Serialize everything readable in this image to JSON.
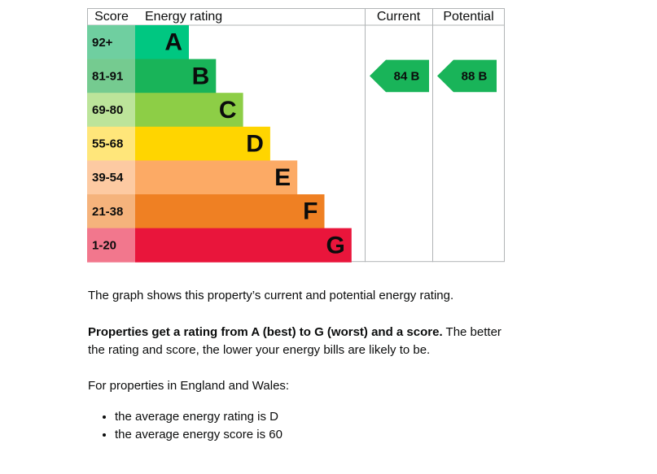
{
  "header": [
    "Score",
    "Energy rating",
    "Current",
    "Potential"
  ],
  "bands": [
    {
      "score": "92+",
      "rating": "A",
      "color": "#00c781",
      "score_color": "#6fcfa0"
    },
    {
      "score": "81-91",
      "rating": "B",
      "color": "#19b459",
      "score_color": "#75cb90"
    },
    {
      "score": "69-80",
      "rating": "C",
      "color": "#8dce46",
      "score_color": "#bce49a"
    },
    {
      "score": "55-68",
      "rating": "D",
      "color": "#ffd500",
      "score_color": "#ffe67a"
    },
    {
      "score": "39-54",
      "rating": "E",
      "color": "#fcaa65",
      "score_color": "#fdcaa2"
    },
    {
      "score": "21-38",
      "rating": "F",
      "color": "#ef8023",
      "score_color": "#f5b37c"
    },
    {
      "score": "1-20",
      "rating": "G",
      "color": "#e9153b",
      "score_color": "#f2778d"
    }
  ],
  "current": {
    "score": "84",
    "rating": "B"
  },
  "potential": {
    "score": "88",
    "rating": "B"
  },
  "text": {
    "intro": "The graph shows this property’s current and potential energy rating.",
    "bold": "Properties get a rating from A (best) to G (worst) and a score.",
    "rest": "The better the rating and score, the lower your energy bills are likely to be.",
    "region": "For properties in England and Wales:",
    "bullets": [
      "the average energy rating is D",
      "the average energy score is 60"
    ]
  }
}
